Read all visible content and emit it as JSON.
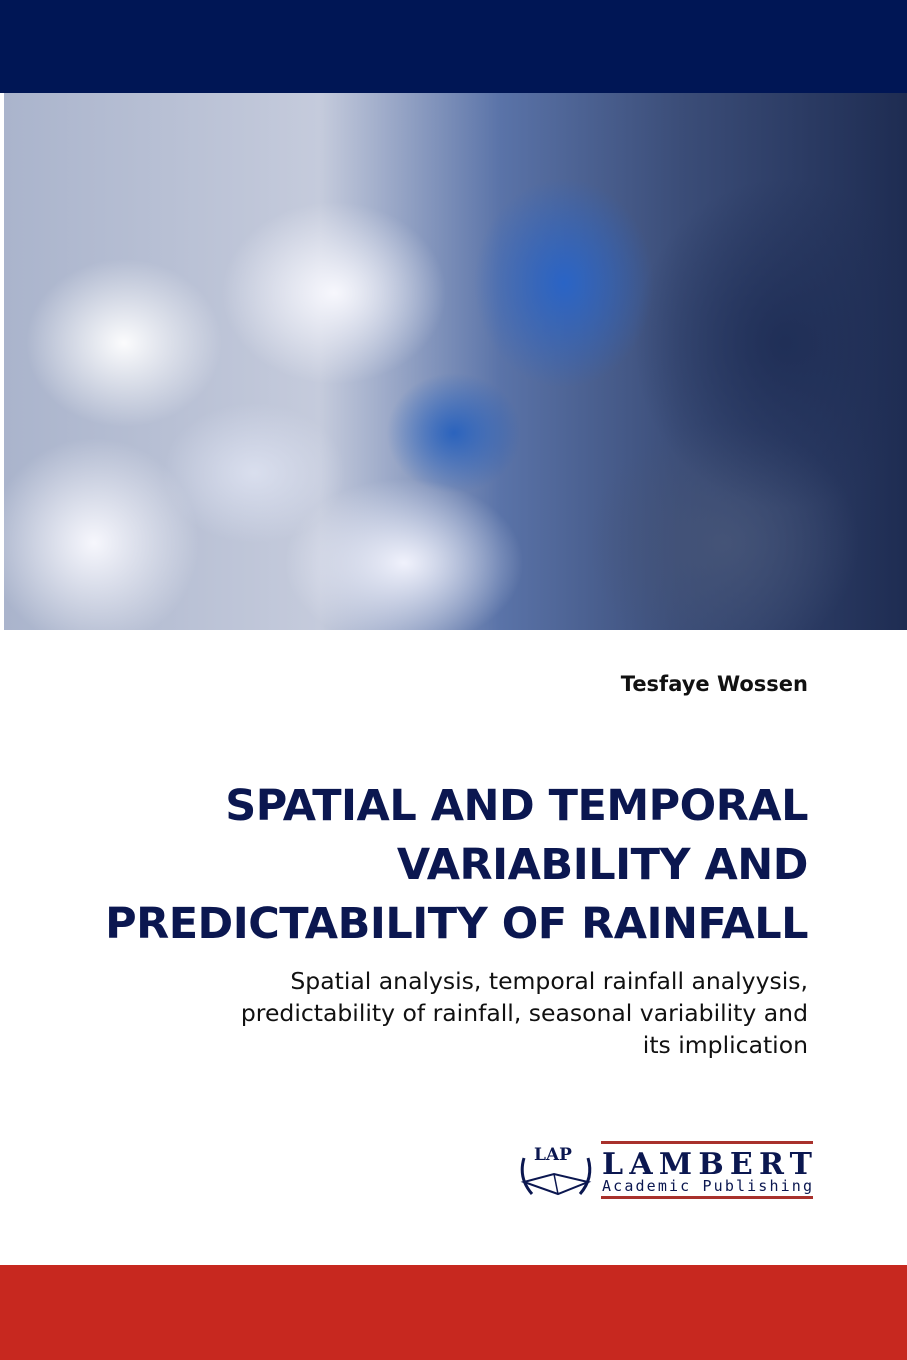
{
  "cover": {
    "author": "Tesfaye Wossen",
    "title_lines": [
      "SPATIAL AND TEMPORAL",
      "VARIABILITY AND",
      "PREDICTABILITY OF RAINFALL"
    ],
    "subtitle_lines": [
      "Spatial analysis, temporal rainfall analyysis,",
      "predictability of rainfall, seasonal variability and",
      "its implication"
    ],
    "publisher": {
      "emblem": "LAP",
      "name": "LAMBERT",
      "subname": "Academic Publishing"
    },
    "colors": {
      "top_bar": "#001655",
      "bottom_band": "#c7281f",
      "title": "#0b1750"
    }
  }
}
